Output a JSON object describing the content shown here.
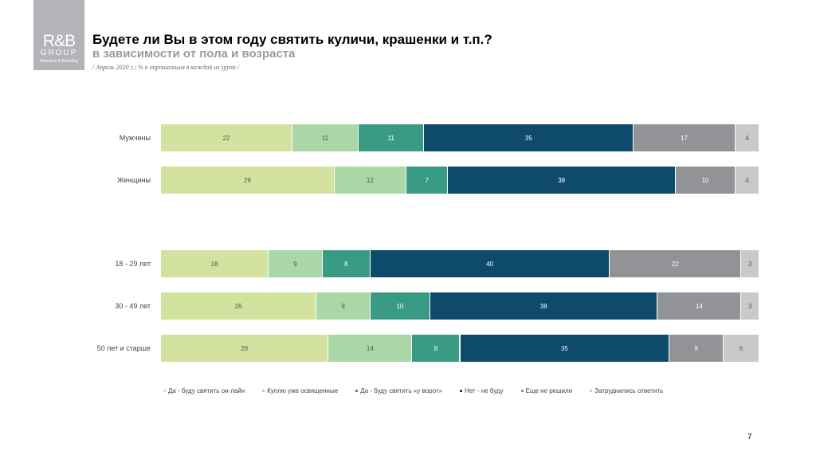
{
  "logo": {
    "line1": "R&B",
    "line2": "GROUP",
    "line3": "Research & Branding"
  },
  "header": {
    "title": "Будете ли Вы в этом году святить куличи, крашенки и т.п.?",
    "subtitle": "в зависимости от пола и возраста",
    "note": "/ Апрель 2020 г.; % к опрошенным в каждой из групп /"
  },
  "page_number": "7",
  "chart_data": {
    "type": "bar",
    "stacked": true,
    "orientation": "horizontal",
    "xlim": [
      0,
      100
    ],
    "legend": "bottom",
    "categories": [
      "Мужчины",
      "Женщины",
      "18 - 29 лет",
      "30 - 49 лет",
      "50 лет и старше"
    ],
    "series": [
      {
        "name": "Да - буду святить он-лайн",
        "color": "#d4e29f",
        "text": "#555",
        "values": [
          22,
          29,
          18,
          26,
          28
        ]
      },
      {
        "name": "Куплю уже освященные",
        "color": "#a9d7a6",
        "text": "#555",
        "values": [
          11,
          12,
          9,
          9,
          14
        ]
      },
      {
        "name": "Да - буду святить «у ворот»",
        "color": "#3a9b85",
        "text": "#fff",
        "values": [
          11,
          7,
          8,
          10,
          8
        ]
      },
      {
        "name": "Нет - не буду",
        "color": "#0e4a6b",
        "text": "#fff",
        "values": [
          35,
          38,
          40,
          38,
          35
        ]
      },
      {
        "name": "Еще не решили",
        "color": "#929396",
        "text": "#fff",
        "values": [
          17,
          10,
          22,
          14,
          9
        ]
      },
      {
        "name": "Затруднились ответить",
        "color": "#c8c9cb",
        "text": "#555",
        "values": [
          4,
          4,
          3,
          3,
          6
        ]
      }
    ]
  }
}
